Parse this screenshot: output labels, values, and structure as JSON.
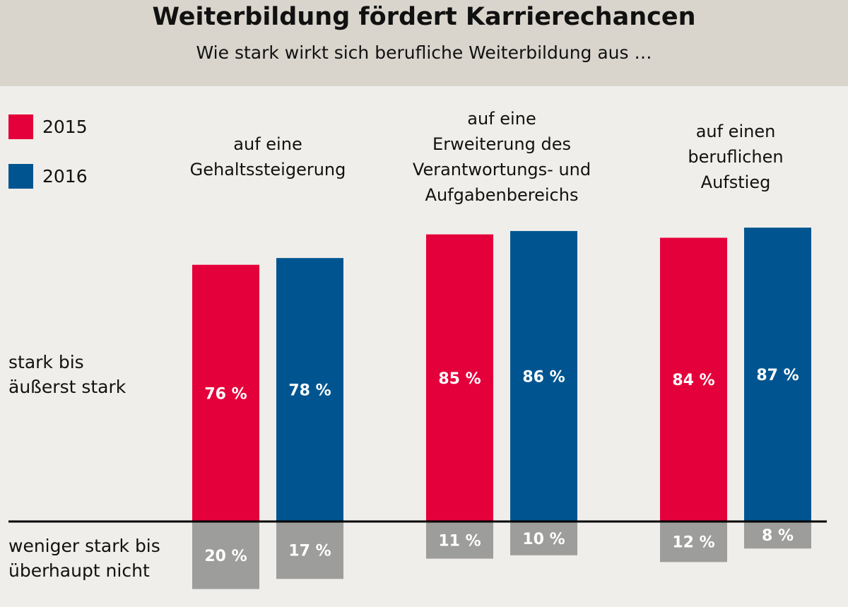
{
  "header": {
    "title": "Weiterbildung fördert Karrierechancen",
    "subtitle": "Wie stark wirkt sich berufliche Weiterbildung aus …"
  },
  "colors": {
    "2015": "#e4003a",
    "2016": "#005590",
    "negative": "#9d9d9c",
    "header_bg": "#d9d5cd",
    "background": "#f0eeea"
  },
  "chart_data": {
    "type": "bar",
    "title": "Weiterbildung fördert Karrierechancen",
    "subtitle": "Wie stark wirkt sich berufliche Weiterbildung aus …",
    "categories": [
      [
        "auf eine",
        "Gehaltssteigerung"
      ],
      [
        "auf eine",
        "Erweiterung des",
        "Verantwortungs- und",
        "Aufgabenbereichs"
      ],
      [
        "auf einen",
        "beruflichen",
        "Aufstieg"
      ]
    ],
    "row_labels": {
      "positive": [
        "stark bis",
        "äußerst stark"
      ],
      "negative": [
        "weniger stark bis",
        "überhaupt nicht"
      ]
    },
    "legend": {
      "position": "top-left",
      "entries": [
        "2015",
        "2016"
      ]
    },
    "unit": "%",
    "grid": false,
    "series": [
      {
        "name": "2015",
        "positive": [
          76,
          85,
          84
        ],
        "negative": [
          20,
          11,
          12
        ]
      },
      {
        "name": "2016",
        "positive": [
          78,
          86,
          87
        ],
        "negative": [
          17,
          10,
          8
        ]
      }
    ]
  }
}
